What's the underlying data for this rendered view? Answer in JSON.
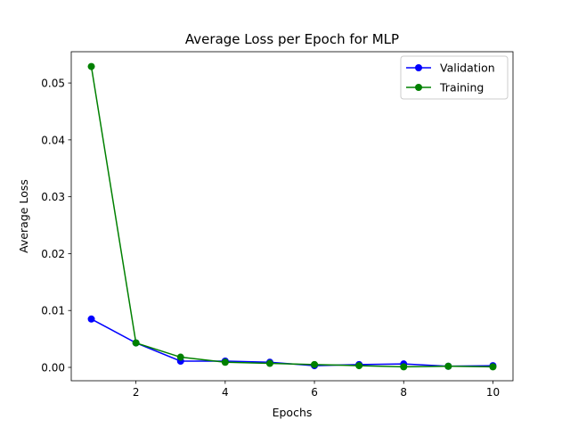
{
  "chart_data": {
    "type": "line",
    "title": "Average Loss per Epoch for MLP",
    "xlabel": "Epochs",
    "ylabel": "Average Loss",
    "xlim": [
      0.55,
      10.45
    ],
    "ylim": [
      -0.00235,
      0.0555
    ],
    "xticks": [
      2,
      4,
      6,
      8,
      10
    ],
    "yticks": [
      0.0,
      0.01,
      0.02,
      0.03,
      0.04,
      0.05
    ],
    "ytick_labels": [
      "0.00",
      "0.01",
      "0.02",
      "0.03",
      "0.04",
      "0.05"
    ],
    "grid": false,
    "legend_position": "top-right",
    "x": [
      1,
      2,
      3,
      4,
      5,
      6,
      7,
      8,
      9,
      10
    ],
    "series": [
      {
        "name": "Validation",
        "color": "#0000ff",
        "marker": "circle",
        "values": [
          0.0085,
          0.0043,
          0.0011,
          0.0011,
          0.0009,
          0.0003,
          0.0005,
          0.0006,
          0.0002,
          0.0003
        ]
      },
      {
        "name": "Training",
        "color": "#008000",
        "marker": "circle",
        "values": [
          0.0529,
          0.0043,
          0.0018,
          0.0009,
          0.0007,
          0.0005,
          0.0003,
          0.0001,
          0.0002,
          0.0001
        ]
      }
    ]
  }
}
